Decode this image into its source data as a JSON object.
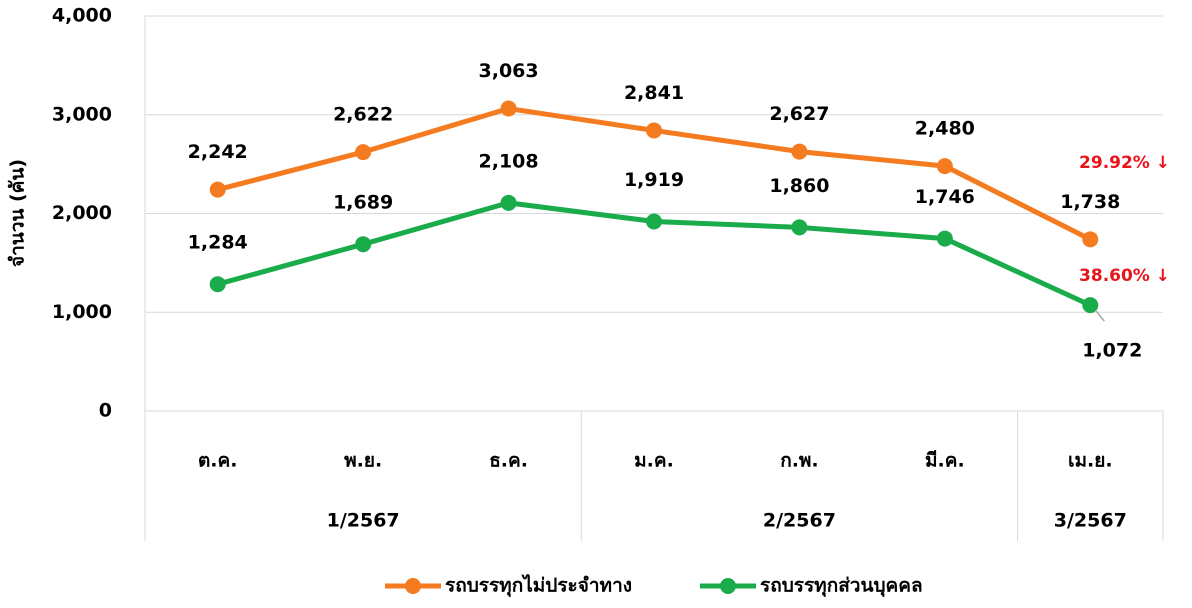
{
  "chart_data": {
    "type": "line",
    "y_label": "จำนวน (คัน)",
    "categories": [
      "ต.ค.",
      "พ.ย.",
      "ธ.ค.",
      "ม.ค.",
      "ก.พ.",
      "มี.ค.",
      "เม.ย."
    ],
    "groups": [
      {
        "label": "1/2567",
        "span": 3
      },
      {
        "label": "2/2567",
        "span": 3
      },
      {
        "label": "3/2567",
        "span": 1
      }
    ],
    "series": [
      {
        "name": "รถบรรทุกไม่ประจำทาง",
        "color": "#f47b20",
        "values": [
          2242,
          2622,
          3063,
          2841,
          2627,
          2480,
          1738
        ],
        "value_labels": [
          "2,242",
          "2,622",
          "3,063",
          "2,841",
          "2,627",
          "2,480",
          "1,738"
        ]
      },
      {
        "name": "รถบรรทุกส่วนบุคคล",
        "color": "#1aab4b",
        "values": [
          1284,
          1689,
          2108,
          1919,
          1860,
          1746,
          1072
        ],
        "value_labels": [
          "1,284",
          "1,689",
          "2,108",
          "1,919",
          "1,860",
          "1,746",
          "1,072"
        ]
      }
    ],
    "annotations": [
      "29.92% ↓",
      "38.60% ↓"
    ],
    "annotation_color": "#e8141b",
    "ylim": [
      0,
      4000
    ],
    "yticks": [
      0,
      {
        "value": 1000,
        "label": "1,000"
      },
      {
        "value": 2000,
        "label": "2,000"
      },
      {
        "value": 3000,
        "label": "3,000"
      },
      {
        "value": 4000,
        "label": "4,000"
      }
    ],
    "grid": true,
    "legend": "bottom"
  }
}
